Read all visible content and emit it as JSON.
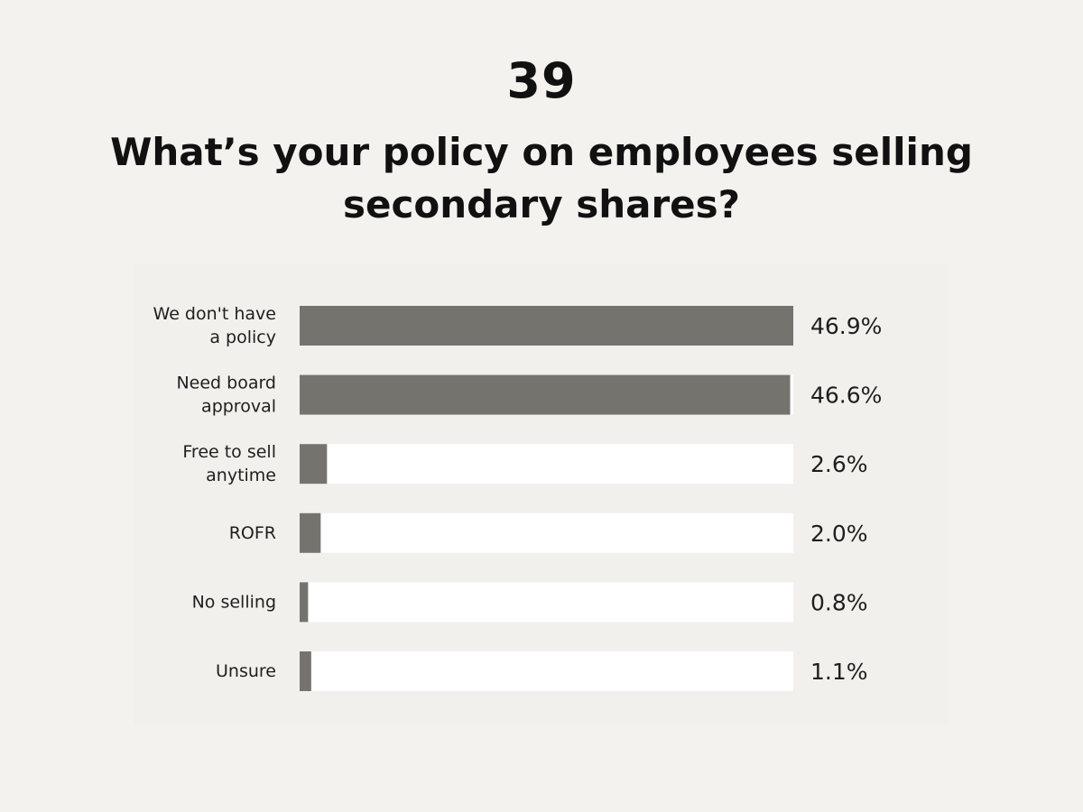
{
  "header": {
    "number": "39",
    "question": "What’s your policy on employees selling secondary shares?"
  },
  "colors": {
    "background": "#f3f2ee",
    "bar_fill": "#74736d",
    "bar_track": "#ffffff",
    "text": "#1e1e1e"
  },
  "chart_data": {
    "type": "bar",
    "orientation": "horizontal",
    "categories": [
      [
        "We don't have",
        "a policy"
      ],
      [
        "Need board",
        "approval"
      ],
      [
        "Free to sell",
        "anytime"
      ],
      [
        "ROFR"
      ],
      [
        "No selling"
      ],
      [
        "Unsure"
      ]
    ],
    "values": [
      46.9,
      46.6,
      2.6,
      2.0,
      0.8,
      1.1
    ],
    "value_labels": [
      "46.9%",
      "46.6%",
      "2.6%",
      "2.0%",
      "0.8%",
      "1.1%"
    ],
    "xlim": [
      0,
      46.9
    ],
    "grid": false,
    "legend": "none"
  }
}
